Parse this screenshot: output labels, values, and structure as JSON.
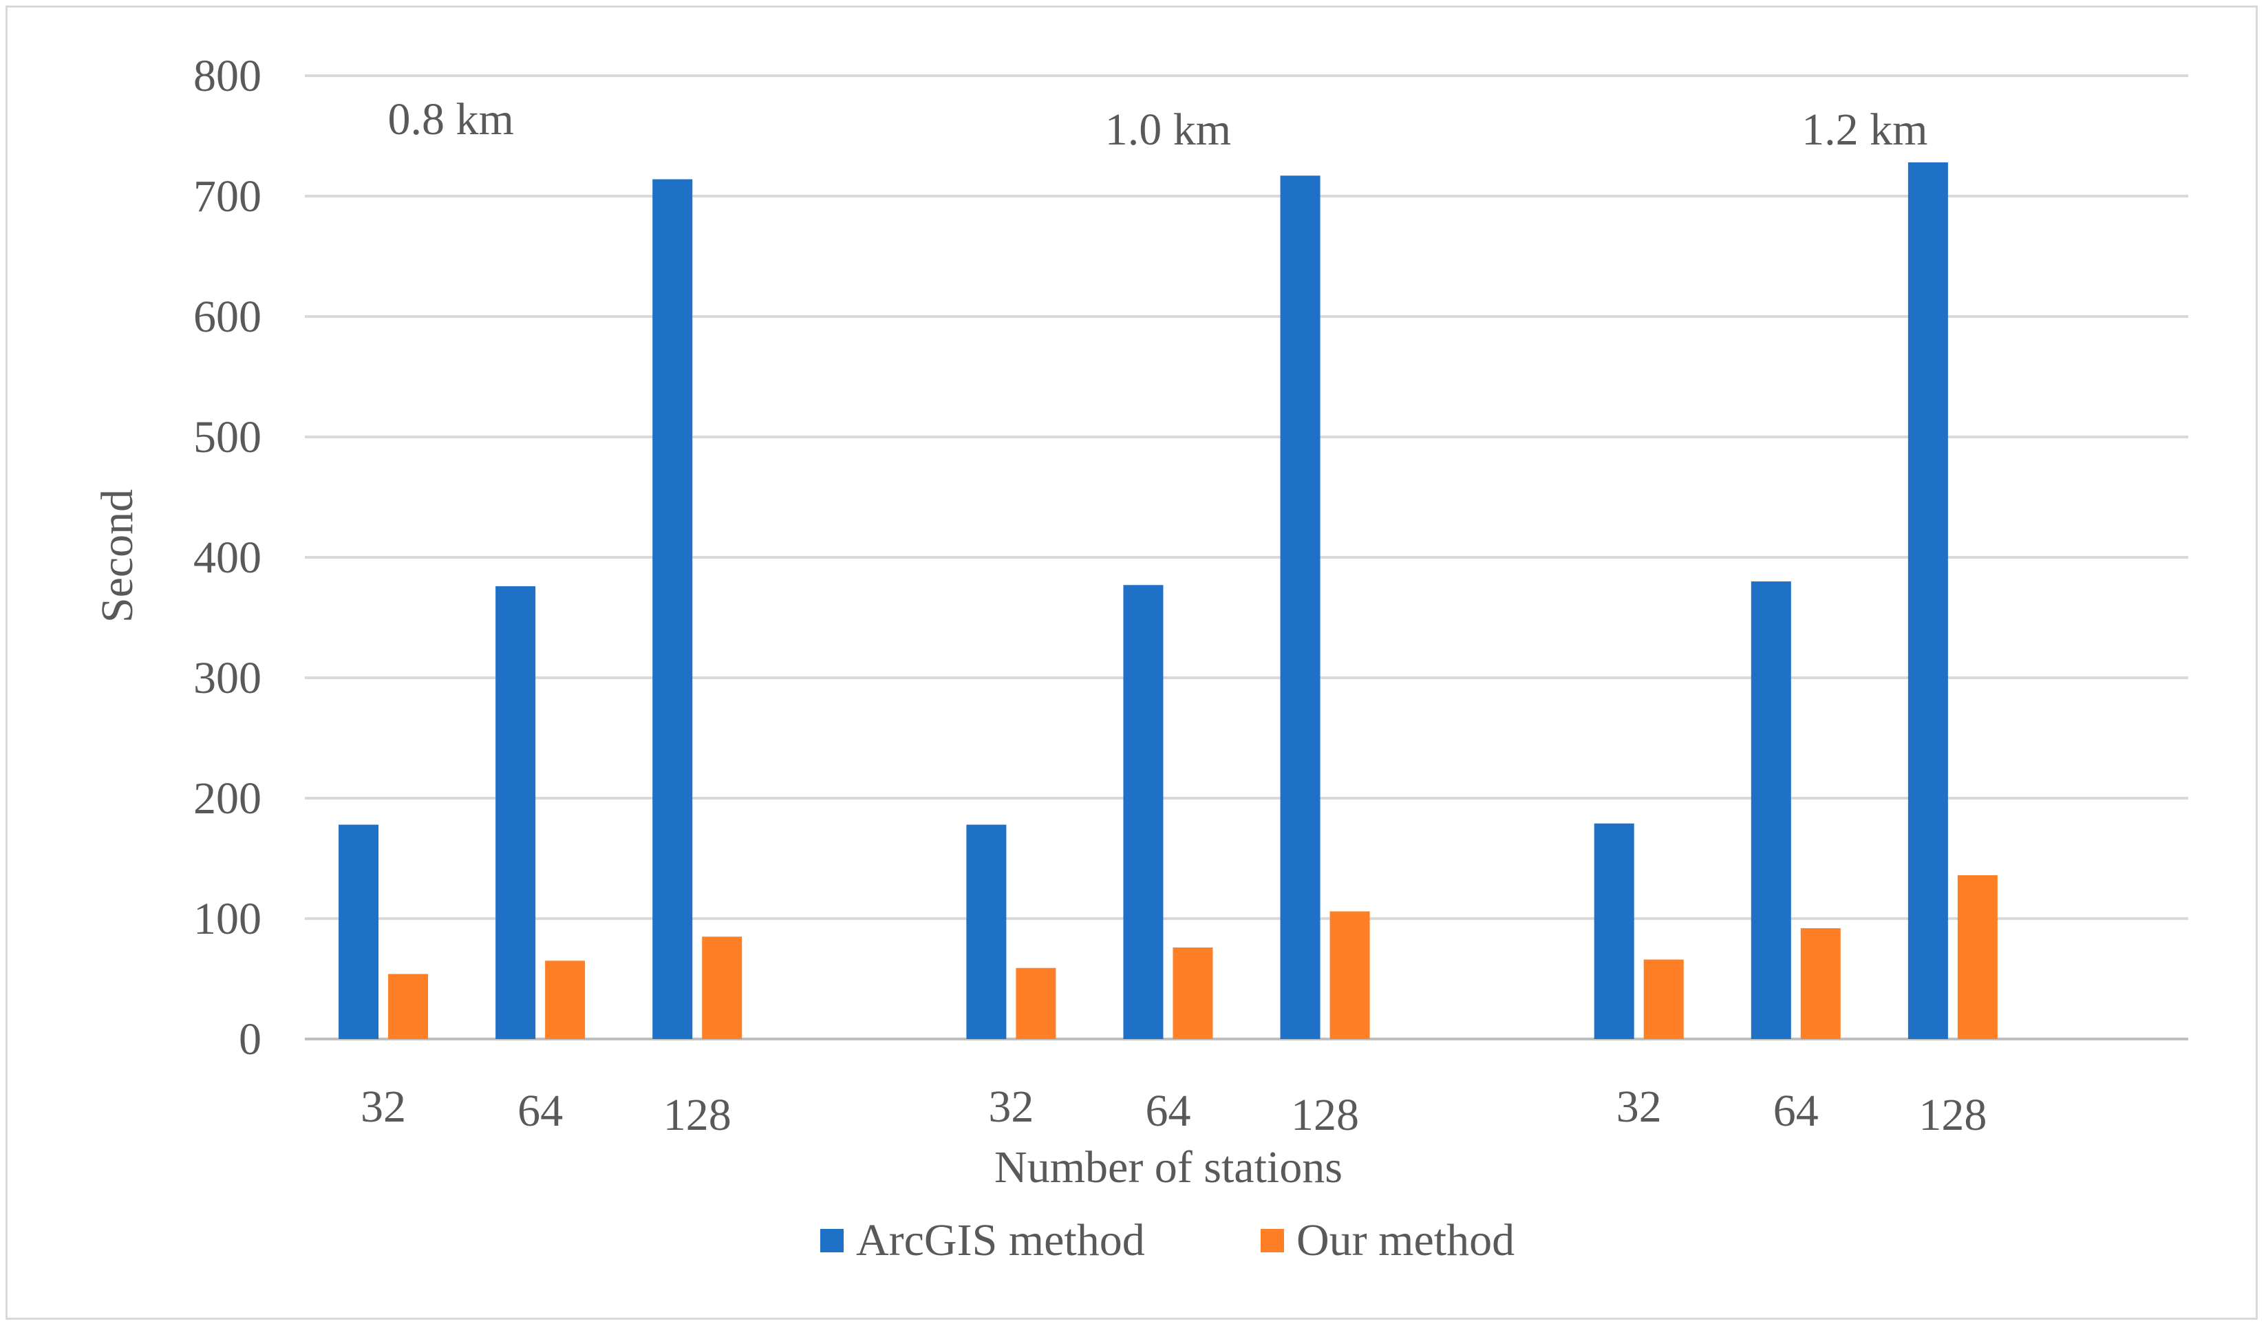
{
  "chart_data": {
    "type": "bar",
    "title": "",
    "xlabel": "Number of stations",
    "ylabel": "Second",
    "ylim": [
      0,
      800
    ],
    "yticks": [
      0,
      100,
      200,
      300,
      400,
      500,
      600,
      700,
      800
    ],
    "grid": true,
    "legend_position": "bottom",
    "categories": [
      "32",
      "64",
      "128",
      "32",
      "64",
      "128",
      "32",
      "64",
      "128"
    ],
    "group_labels": [
      "0.8 km",
      "1.0 km",
      "1.2 km"
    ],
    "series": [
      {
        "name": "ArcGIS method",
        "color": "#1f71c8",
        "values": [
          178,
          376,
          714,
          178,
          377,
          717,
          179,
          380,
          728
        ]
      },
      {
        "name": "Our method",
        "color": "#ff7f27",
        "values": [
          54,
          65,
          85,
          59,
          76,
          106,
          66,
          92,
          136
        ]
      }
    ]
  }
}
